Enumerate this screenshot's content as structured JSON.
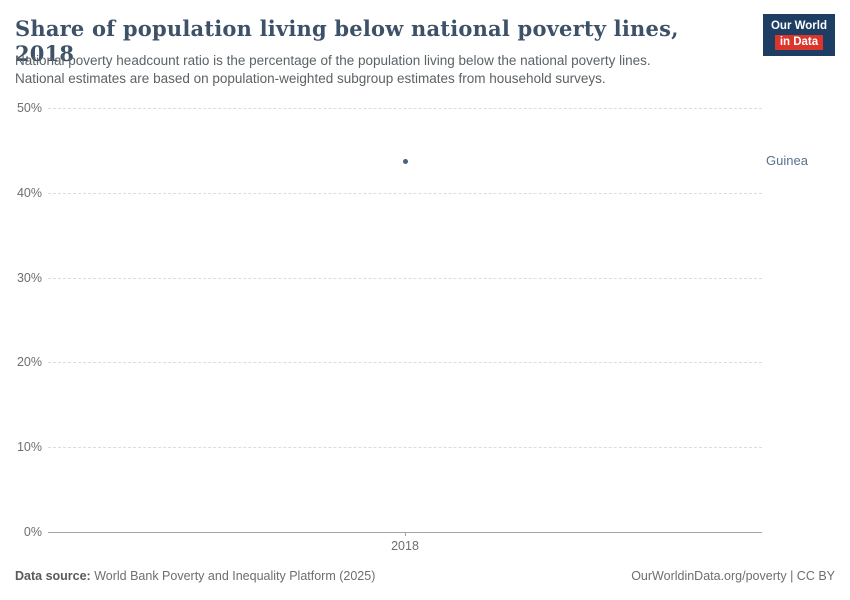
{
  "header": {
    "title": "Share of population living below national poverty lines, 2018",
    "subtitle_line1": "National poverty headcount ratio is the percentage of the population living below the national poverty lines.",
    "subtitle_line2": "National estimates are based on population-weighted subgroup estimates from household surveys.",
    "logo_line1": "Our World",
    "logo_line2": "in Data"
  },
  "chart_data": {
    "type": "scatter",
    "title": "Share of population living below national poverty lines, 2018",
    "x_ticks": [
      "2018"
    ],
    "y_ticks": [
      "0%",
      "10%",
      "20%",
      "30%",
      "40%",
      "50%"
    ],
    "ylim": [
      0,
      50
    ],
    "xlabel": "",
    "ylabel": "",
    "grid": "horizontal-dashed",
    "legend_position": "right-inline-label",
    "series": [
      {
        "name": "Guinea",
        "x": [
          2018
        ],
        "values": [
          43.7
        ],
        "color": "#47637f",
        "label_color": "#577291"
      }
    ]
  },
  "footer": {
    "source_label": "Data source:",
    "source_text": " World Bank Poverty and Inequality Platform (2025)",
    "right_text": "OurWorldinData.org/poverty | CC BY"
  },
  "colors": {
    "logo_bg": "#1d3d63",
    "logo_red": "#dc352b",
    "title": "#3d5168",
    "subtitle": "#5b6266",
    "gridline": "#dcdcdc",
    "axis": "#a5a5a5",
    "tick_text": "#6e6e6e",
    "point": "#47637f",
    "entity_label": "#577291",
    "footer_text": "#6e6e6e"
  }
}
